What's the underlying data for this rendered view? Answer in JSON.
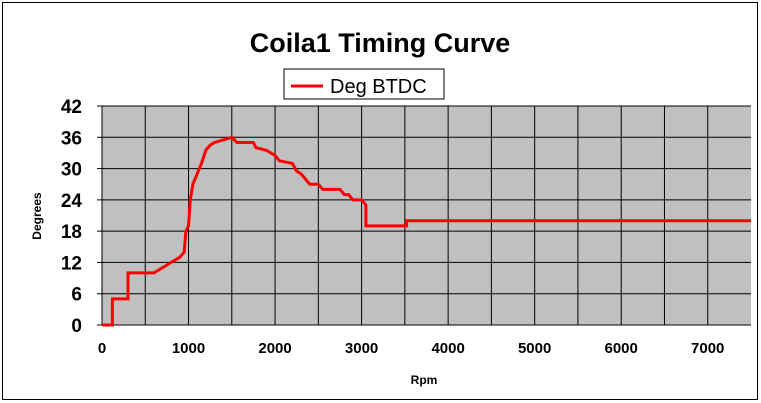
{
  "chart_data": {
    "type": "line",
    "title": "Coila1 Timing Curve",
    "xlabel": "Rpm",
    "ylabel": "Degrees",
    "xlim": [
      0,
      7500
    ],
    "ylim": [
      0,
      42
    ],
    "x_tick_values": [
      0,
      1000,
      2000,
      3000,
      4000,
      5000,
      6000,
      7000
    ],
    "x_tick_labels": [
      "0",
      "1000",
      "2000",
      "3000",
      "4000",
      "5000",
      "6000",
      "7000"
    ],
    "x_grid_step": 500,
    "y_tick_values": [
      0,
      6,
      12,
      18,
      24,
      30,
      36,
      42
    ],
    "y_tick_labels": [
      "0",
      "6",
      "12",
      "18",
      "24",
      "30",
      "36",
      "42"
    ],
    "grid": true,
    "plot_background": "#c0c0c0",
    "legend_position": "top-center",
    "series": [
      {
        "name": "Deg BTDC",
        "color": "#ff0000",
        "x": [
          0,
          120,
          120,
          300,
          300,
          600,
          750,
          900,
          950,
          970,
          1000,
          1020,
          1050,
          1100,
          1150,
          1200,
          1250,
          1300,
          1400,
          1500,
          1560,
          1600,
          1750,
          1780,
          1900,
          1950,
          2000,
          2050,
          2200,
          2250,
          2300,
          2400,
          2450,
          2500,
          2550,
          2550,
          2750,
          2800,
          2850,
          2900,
          3000,
          3050,
          3050,
          3520,
          3520,
          7500
        ],
        "y": [
          0,
          0,
          5,
          5,
          10,
          10,
          11.5,
          13,
          14,
          18,
          19,
          24,
          27,
          29,
          31,
          33.5,
          34.5,
          35,
          35.5,
          36,
          35,
          35,
          35,
          34,
          33.5,
          33,
          32.5,
          31.5,
          31,
          29.5,
          29,
          27,
          27,
          27,
          26,
          26,
          26,
          25,
          25,
          24,
          24,
          23,
          19,
          19,
          20,
          20
        ]
      }
    ]
  }
}
